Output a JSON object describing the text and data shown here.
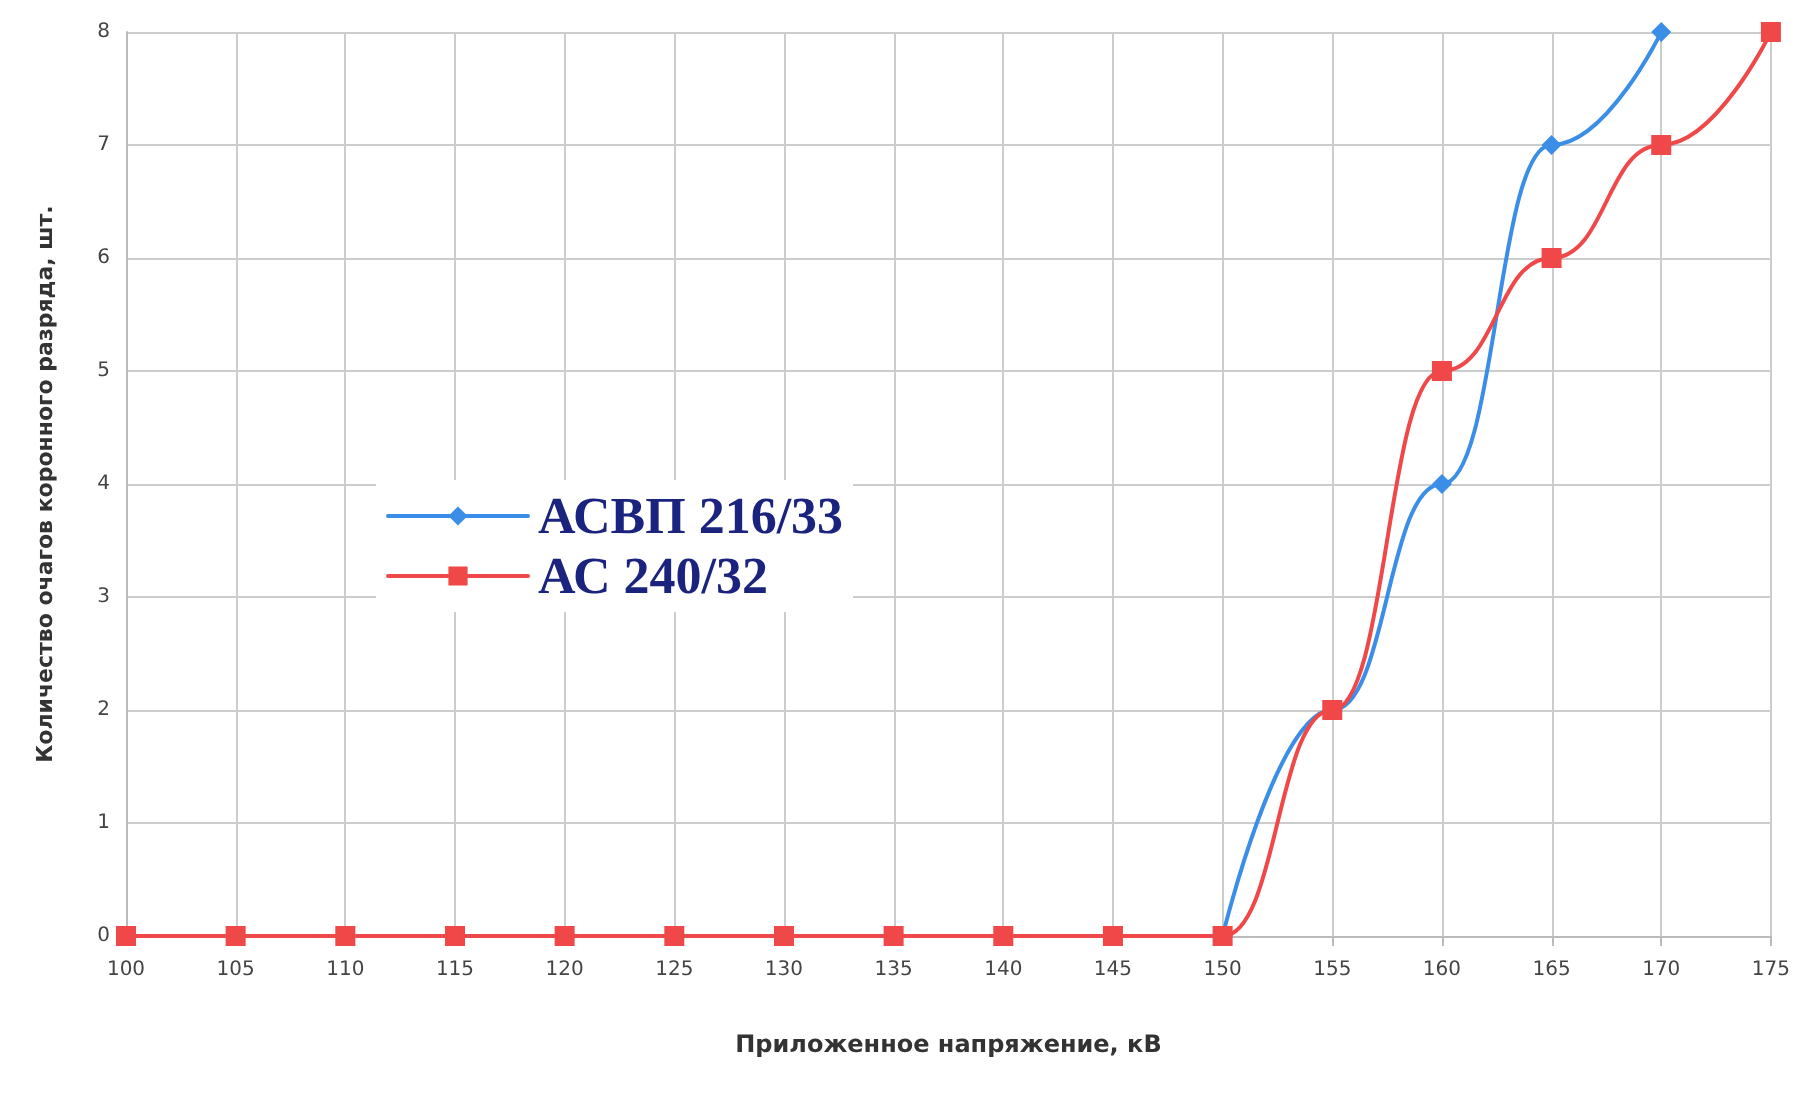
{
  "chart_data": {
    "type": "line",
    "xlabel": "Приложенное напряжение, кВ",
    "ylabel": "Количество очагов коронного разряда, шт.",
    "x": [
      100,
      105,
      110,
      115,
      120,
      125,
      130,
      135,
      140,
      145,
      150,
      155,
      160,
      165,
      170,
      175
    ],
    "series": [
      {
        "name": "АСВП 216/33",
        "color": "#3b8ee8",
        "marker": "diamond",
        "values": [
          null,
          null,
          null,
          null,
          null,
          null,
          null,
          null,
          null,
          null,
          0,
          2,
          4,
          7,
          8,
          null
        ]
      },
      {
        "name": "АС 240/32",
        "color": "#f04848",
        "marker": "square",
        "values": [
          0,
          0,
          0,
          0,
          0,
          0,
          0,
          0,
          0,
          0,
          0,
          2,
          5,
          6,
          7,
          8
        ]
      }
    ],
    "xlim": [
      100,
      175
    ],
    "xticks": [
      100,
      105,
      110,
      115,
      120,
      125,
      130,
      135,
      140,
      145,
      150,
      155,
      160,
      165,
      170,
      175
    ],
    "ylim": [
      0,
      8
    ],
    "yticks": [
      0,
      1,
      2,
      3,
      4,
      5,
      6,
      7,
      8
    ],
    "grid": true,
    "legend": "left"
  }
}
